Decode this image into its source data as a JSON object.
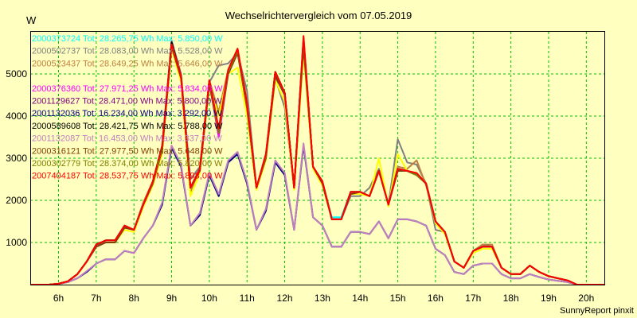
{
  "chart_data": {
    "type": "line",
    "title": "Wechselrichtervergleich vom 07.05.2019",
    "ylabel": "W",
    "footer": "SunnyReport pinxit",
    "x_ticks": [
      "6h",
      "7h",
      "8h",
      "9h",
      "10h",
      "11h",
      "12h",
      "13h",
      "14h",
      "15h",
      "16h",
      "17h",
      "18h",
      "19h",
      "20h"
    ],
    "y_ticks": [
      "1000",
      "2000",
      "3000",
      "4000",
      "5000"
    ],
    "xlim": [
      5.25,
      20.5
    ],
    "ylim": [
      0,
      6000
    ],
    "grid": true,
    "legend_position": "top-left",
    "x": [
      5.25,
      5.5,
      5.75,
      6.0,
      6.25,
      6.5,
      6.75,
      7.0,
      7.25,
      7.5,
      7.75,
      8.0,
      8.25,
      8.5,
      8.75,
      9.0,
      9.25,
      9.5,
      9.75,
      10.0,
      10.25,
      10.5,
      10.75,
      11.0,
      11.25,
      11.5,
      11.75,
      12.0,
      12.25,
      12.5,
      12.75,
      13.0,
      13.25,
      13.5,
      13.75,
      14.0,
      14.25,
      14.5,
      14.75,
      15.0,
      15.25,
      15.5,
      15.75,
      16.0,
      16.25,
      16.5,
      16.75,
      17.0,
      17.25,
      17.5,
      17.75,
      18.0,
      18.25,
      18.5,
      18.75,
      19.0,
      19.25,
      19.5,
      19.75,
      20.0,
      20.25,
      20.5
    ],
    "series": [
      {
        "name": "2000373724 Tot: 28.265,75 Wh Max: 5.850,00 W",
        "color": "#00FFFF",
        "values": [
          0,
          0,
          0,
          20,
          80,
          250,
          550,
          900,
          1050,
          1050,
          1350,
          1300,
          1900,
          2400,
          3200,
          5700,
          4900,
          2300,
          2700,
          4800,
          3600,
          5000,
          5500,
          4200,
          2300,
          3000,
          5000,
          4500,
          2300,
          5800,
          2800,
          2400,
          1600,
          1600,
          2200,
          2200,
          2100,
          2700,
          1900,
          2700,
          2700,
          2600,
          2400,
          1500,
          1250,
          550,
          400,
          800,
          900,
          900,
          400,
          250,
          250,
          450,
          300,
          200,
          150,
          100,
          0,
          0,
          0,
          0
        ]
      },
      {
        "name": "2000502737 Tot: 28.083,00 Wh Max: 5.528,00 W",
        "color": "#808080",
        "values": [
          0,
          0,
          0,
          20,
          80,
          250,
          550,
          950,
          1050,
          1050,
          1400,
          1300,
          1950,
          2450,
          3300,
          5800,
          5000,
          2500,
          2800,
          4800,
          5200,
          5250,
          5500,
          4600,
          2300,
          3100,
          4900,
          4200,
          2300,
          5650,
          2800,
          2400,
          1550,
          1550,
          2100,
          2100,
          2300,
          2750,
          1900,
          3450,
          2900,
          2850,
          2400,
          1300,
          1250,
          550,
          400,
          800,
          950,
          900,
          400,
          250,
          250,
          450,
          300,
          200,
          150,
          100,
          0,
          0,
          0,
          0
        ]
      },
      {
        "name": "2000523437 Tot: 28.649,25 Wh Max: 5.646,00 W",
        "color": "#C08040",
        "values": [
          0,
          0,
          0,
          20,
          80,
          250,
          550,
          950,
          1050,
          1050,
          1400,
          1300,
          1950,
          2450,
          3300,
          5750,
          4950,
          2200,
          2750,
          4850,
          4100,
          5100,
          5600,
          4350,
          2300,
          3000,
          5050,
          4550,
          2300,
          5800,
          2800,
          2450,
          1550,
          1550,
          2200,
          2200,
          2100,
          2700,
          1900,
          2800,
          2750,
          2950,
          2350,
          1500,
          1250,
          550,
          400,
          800,
          950,
          950,
          400,
          250,
          250,
          450,
          300,
          200,
          150,
          100,
          0,
          0,
          0,
          0
        ]
      },
      {
        "name": "",
        "color": "#FFFF00",
        "values": [
          0,
          0,
          0,
          20,
          80,
          250,
          550,
          900,
          1000,
          1000,
          1300,
          1250,
          1850,
          2350,
          3100,
          5600,
          4800,
          2100,
          2650,
          4700,
          4000,
          5000,
          5150,
          4000,
          2250,
          2950,
          4850,
          4350,
          2250,
          5500,
          2750,
          2350,
          1550,
          1550,
          2150,
          2150,
          2100,
          3000,
          1850,
          3100,
          2700,
          2650,
          2400,
          1450,
          1200,
          550,
          400,
          750,
          850,
          850,
          400,
          250,
          250,
          450,
          300,
          200,
          150,
          100,
          0,
          0,
          0,
          0
        ]
      },
      {
        "name": "2000376360 Tot: 27.971,25 Wh Max: 5.834,00 W",
        "color": "#FF00FF",
        "values": [
          0,
          0,
          0,
          20,
          80,
          250,
          550,
          900,
          1000,
          1000,
          1350,
          1300,
          1900,
          2400,
          3200,
          5700,
          4900,
          2300,
          2700,
          4800,
          3500,
          5000,
          5500,
          4200,
          2300,
          3000,
          4950,
          4500,
          2300,
          5800,
          2800,
          2400,
          1550,
          1550,
          2150,
          2200,
          2100,
          2700,
          1900,
          2700,
          2700,
          2600,
          2400,
          1500,
          1250,
          550,
          400,
          800,
          900,
          900,
          400,
          250,
          250,
          450,
          300,
          200,
          150,
          100,
          0,
          0,
          0,
          0
        ]
      },
      {
        "name": "2001129627 Tot: 28.471,00 Wh Max: 5.800,00 W",
        "color": "#800080",
        "values": [
          0,
          0,
          0,
          20,
          80,
          250,
          550,
          950,
          1050,
          1050,
          1400,
          1300,
          1900,
          2400,
          3250,
          5750,
          4950,
          2300,
          2750,
          4850,
          3600,
          5050,
          5550,
          4250,
          2300,
          3050,
          5050,
          4550,
          2300,
          5850,
          2800,
          2450,
          1550,
          1550,
          2200,
          2200,
          2100,
          2700,
          1900,
          2750,
          2700,
          2600,
          2400,
          1500,
          1250,
          550,
          400,
          800,
          900,
          900,
          400,
          250,
          250,
          450,
          300,
          200,
          150,
          100,
          0,
          0,
          0,
          0
        ]
      },
      {
        "name": "2001132036 Tot: 16.234,00 Wh Max: 3.292,00 W",
        "color": "#000080",
        "values": [
          0,
          0,
          0,
          15,
          60,
          150,
          300,
          500,
          600,
          600,
          800,
          750,
          1100,
          1400,
          1900,
          3250,
          2800,
          1400,
          1650,
          2600,
          2100,
          2900,
          3100,
          2400,
          1300,
          1750,
          2900,
          2600,
          1300,
          3300,
          1600,
          1400,
          900,
          900,
          1250,
          1250,
          1200,
          1500,
          1100,
          1550,
          1550,
          1500,
          1400,
          850,
          700,
          300,
          250,
          450,
          500,
          500,
          250,
          150,
          150,
          250,
          180,
          120,
          90,
          60,
          0,
          0,
          0,
          0
        ]
      },
      {
        "name": "2000589608 Tot: 28.421,75 Wh Max: 5.788,00 W",
        "color": "#000000",
        "values": [
          0,
          0,
          0,
          20,
          80,
          250,
          550,
          950,
          1050,
          1050,
          1400,
          1300,
          1900,
          2400,
          3250,
          5750,
          4950,
          2300,
          2750,
          4800,
          3650,
          5050,
          5550,
          4250,
          2300,
          3050,
          5050,
          4550,
          2300,
          5800,
          2800,
          2450,
          1550,
          1550,
          2200,
          2200,
          2100,
          2700,
          1900,
          2750,
          2700,
          2600,
          2400,
          1500,
          1250,
          550,
          400,
          800,
          900,
          900,
          400,
          250,
          250,
          450,
          300,
          200,
          150,
          100,
          0,
          0,
          0,
          0
        ]
      },
      {
        "name": "2001132087 Tot: 16.453,00 Wh Max: 3.337,00 W",
        "color": "#C080C0",
        "values": [
          0,
          0,
          0,
          15,
          60,
          150,
          320,
          500,
          600,
          600,
          800,
          750,
          1100,
          1400,
          1950,
          3300,
          2850,
          1400,
          1700,
          2650,
          2150,
          2950,
          3150,
          2450,
          1300,
          1800,
          2950,
          2650,
          1300,
          3350,
          1600,
          1400,
          900,
          900,
          1250,
          1250,
          1200,
          1500,
          1100,
          1550,
          1550,
          1500,
          1400,
          850,
          700,
          300,
          250,
          450,
          500,
          500,
          250,
          150,
          150,
          250,
          180,
          120,
          90,
          60,
          0,
          0,
          0,
          0
        ]
      },
      {
        "name": "2000316121 Tot: 27.977,50 Wh Max: 5.648,00 W",
        "color": "#804000",
        "values": [
          0,
          0,
          0,
          20,
          80,
          250,
          550,
          900,
          1000,
          1000,
          1350,
          1300,
          1900,
          2400,
          3200,
          5650,
          4900,
          2300,
          2700,
          4750,
          3600,
          5000,
          5500,
          4200,
          2300,
          3000,
          4950,
          4500,
          2300,
          5650,
          2800,
          2400,
          1550,
          1550,
          2150,
          2200,
          2100,
          2700,
          1900,
          2700,
          2700,
          2600,
          2400,
          1500,
          1250,
          550,
          400,
          800,
          900,
          900,
          400,
          250,
          250,
          450,
          300,
          200,
          150,
          100,
          0,
          0,
          0,
          0
        ]
      },
      {
        "name": "2000302779 Tot: 28.374,00 Wh Max: 5.820,00 W",
        "color": "#808000",
        "values": [
          0,
          0,
          0,
          20,
          80,
          250,
          550,
          950,
          1050,
          1050,
          1400,
          1300,
          1900,
          2400,
          3250,
          5700,
          4950,
          2300,
          2750,
          4850,
          3600,
          5050,
          5550,
          4250,
          2300,
          3050,
          5050,
          4550,
          2300,
          5820,
          2800,
          2450,
          1550,
          1550,
          2200,
          2200,
          2100,
          2700,
          1900,
          2750,
          2700,
          2600,
          2400,
          1500,
          1250,
          550,
          400,
          800,
          900,
          900,
          400,
          250,
          250,
          450,
          300,
          200,
          150,
          100,
          0,
          0,
          0,
          0
        ]
      },
      {
        "name": "2007404187 Tot: 28.537,75 Wh Max: 5.898,00 W",
        "color": "#FF0000",
        "values": [
          0,
          0,
          0,
          20,
          80,
          250,
          550,
          950,
          1050,
          1050,
          1400,
          1300,
          1900,
          2450,
          3300,
          5700,
          4950,
          2300,
          2750,
          4850,
          3700,
          5100,
          5600,
          4300,
          2300,
          3100,
          5050,
          4550,
          2300,
          5900,
          2800,
          2450,
          1550,
          1550,
          2200,
          2200,
          2100,
          2700,
          1900,
          2750,
          2700,
          2650,
          2400,
          1500,
          1250,
          550,
          400,
          800,
          900,
          900,
          400,
          250,
          250,
          450,
          300,
          200,
          150,
          100,
          0,
          0,
          0,
          0
        ]
      }
    ]
  }
}
